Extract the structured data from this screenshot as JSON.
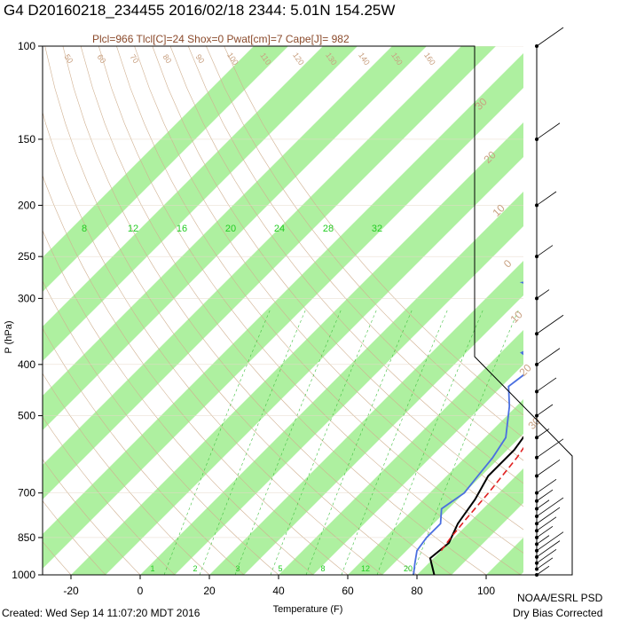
{
  "header": {
    "title": "G4 D20160218_234455 2016/02/18 2344:  5.01N 154.25W",
    "subtitle": "Plcl=966 Tlcl[C]=24 Shox=0 Pwat[cm]=7 Cape[J]= 982"
  },
  "footer": {
    "created": "Created: Wed Sep 14 11:07:20 MDT 2016",
    "org": "NOAA/ESRL PSD",
    "note": "Dry Bias Corrected"
  },
  "colors": {
    "band": "#aef0a0",
    "temperature": "#000000",
    "dewpoint": "#4a6fe0",
    "parcel": "#e02020",
    "isotherm_label": "#c8a080",
    "mixing_label": "#22cc22"
  },
  "chart_data": {
    "type": "line",
    "xlabel": "Temperature (F)",
    "ylabel": "P (hPa)",
    "xlim": [
      -28,
      112
    ],
    "ylim": [
      1000,
      100
    ],
    "y_scale": "log",
    "x_ticks": [
      "-20",
      "0",
      "20",
      "40",
      "60",
      "80",
      "100"
    ],
    "y_ticks": [
      "100",
      "150",
      "200",
      "250",
      "300",
      "400",
      "500",
      "700",
      "850",
      "1000"
    ],
    "isotherm_labels": [
      "30",
      "20",
      "10",
      "0",
      "10",
      "20",
      "30"
    ],
    "top_labels": [
      "50",
      "60",
      "70",
      "80",
      "90",
      "100",
      "110",
      "120",
      "130",
      "140",
      "150",
      "160"
    ],
    "mixing_ratio_labels": [
      "8",
      "12",
      "16",
      "20",
      "24",
      "28",
      "32"
    ],
    "bottom_mixing_labels": [
      "1",
      "2",
      "3",
      "5",
      "8",
      "12",
      "20"
    ],
    "series": [
      {
        "name": "Temperature",
        "x": [
          85,
          79,
          80,
          77,
          75,
          72,
          72,
          70,
          68,
          65,
          60,
          56,
          52,
          49,
          46,
          43,
          40,
          38,
          37,
          36
        ],
        "y": [
          1000,
          930,
          870,
          800,
          720,
          650,
          580,
          520,
          470,
          420,
          380,
          340,
          300,
          270,
          250,
          230,
          210,
          200,
          190,
          180
        ]
      },
      {
        "name": "Dewpoint",
        "x": [
          79,
          76,
          73,
          72,
          72,
          68,
          70,
          69,
          68,
          66,
          58,
          52,
          54,
          46,
          50,
          42,
          44,
          40,
          38,
          34,
          44,
          38,
          50,
          30,
          26,
          37,
          42,
          40,
          35,
          32
        ],
        "y": [
          1000,
          950,
          900,
          850,
          800,
          750,
          700,
          650,
          600,
          550,
          480,
          440,
          400,
          380,
          360,
          350,
          340,
          330,
          320,
          310,
          300,
          295,
          290,
          285,
          280,
          270,
          260,
          240,
          220,
          205
        ]
      },
      {
        "name": "Parcel",
        "x": [
          80,
          79,
          78,
          77,
          75,
          72,
          68,
          64,
          60,
          56,
          52,
          48,
          44,
          40
        ],
        "y": [
          900,
          850,
          780,
          700,
          600,
          520,
          450,
          390,
          340,
          300,
          260,
          225,
          200,
          180
        ]
      }
    ],
    "grid": true
  }
}
